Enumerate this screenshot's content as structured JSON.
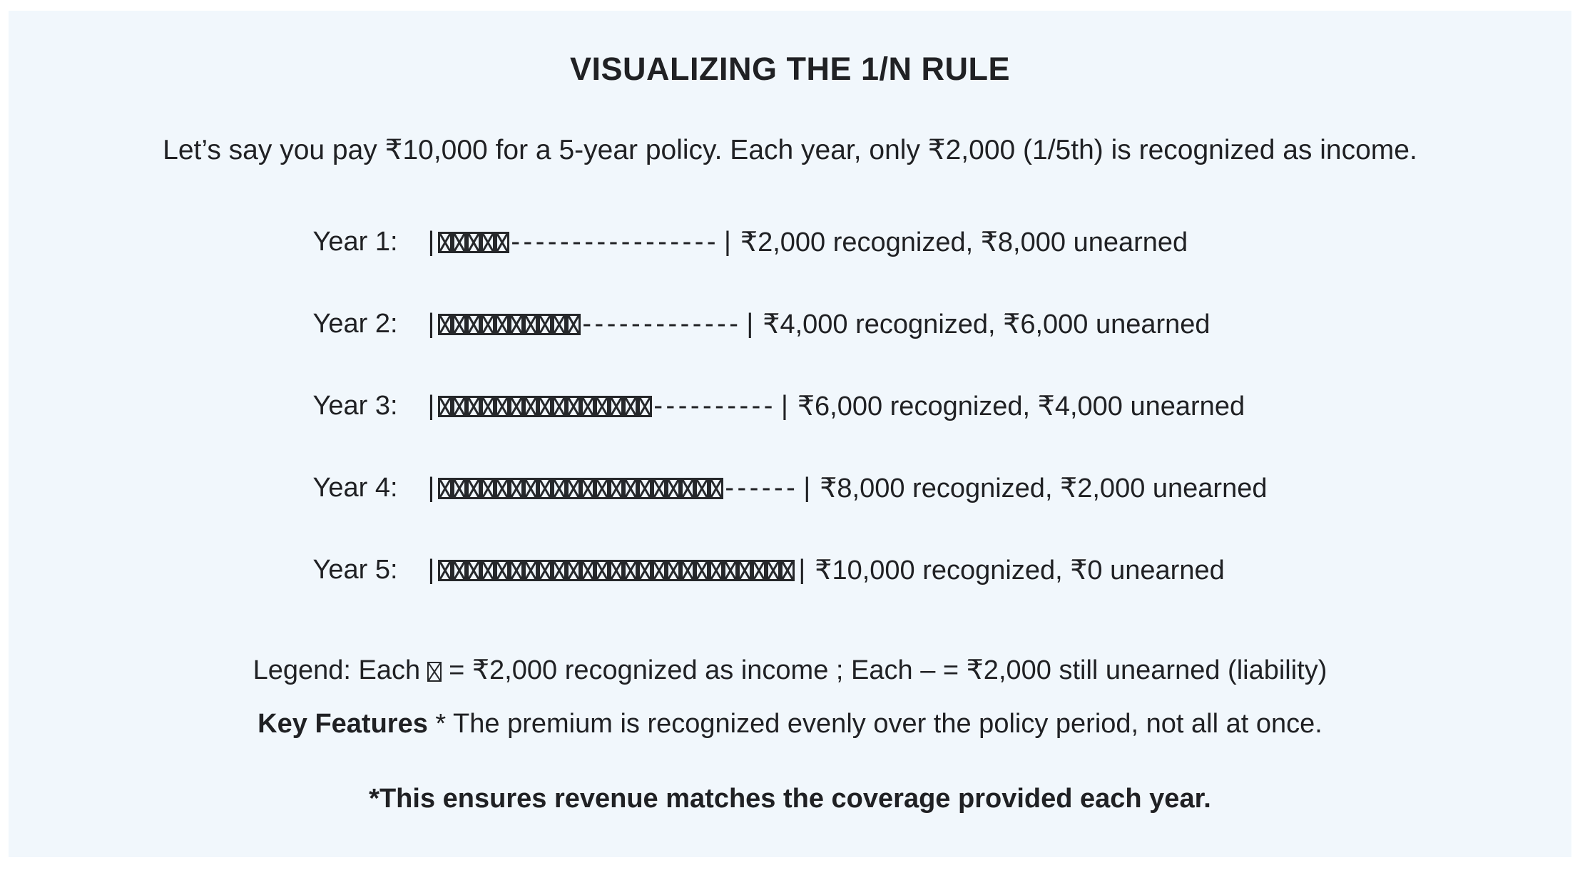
{
  "colors": {
    "page_bg": "#ffffff",
    "panel_bg": "#f1f7fc",
    "text": "#202124",
    "glyph_stroke": "#26282b"
  },
  "title": "VISUALIZING THE 1/N RULE",
  "intro": "Let’s say you pay ₹10,000 for a 5-year policy. Each year, only ₹2,000 (1/5th) is recognized as income.",
  "bar_glyphs": {
    "open_pipe": "|",
    "close_pipe": "|",
    "dash": "-",
    "block": "missing-glyph-box"
  },
  "rows": [
    {
      "label": "Year 1:",
      "blocks": 5,
      "dashes": 17,
      "values": "₹2,000 recognized, ₹8,000 unearned"
    },
    {
      "label": "Year 2:",
      "blocks": 10,
      "dashes": 13,
      "values": "₹4,000 recognized, ₹6,000 unearned"
    },
    {
      "label": "Year 3:",
      "blocks": 15,
      "dashes": 10,
      "values": "₹6,000 recognized, ₹4,000 unearned"
    },
    {
      "label": "Year 4:",
      "blocks": 20,
      "dashes": 6,
      "values": "₹8,000 recognized, ₹2,000 unearned"
    },
    {
      "label": "Year 5:",
      "blocks": 25,
      "dashes": 0,
      "values": "₹10,000 recognized, ₹0 unearned"
    }
  ],
  "legend": {
    "prefix": "Legend: Each",
    "suffix": "= ₹2,000 recognized as income ; Each – = ₹2,000 still unearned (liability)"
  },
  "key_features": {
    "bold": "Key Features",
    "rest": " * The premium is recognized evenly over the policy period, not all at once."
  },
  "footnote": "*This ensures revenue matches the coverage provided each year.",
  "chart_data": {
    "type": "bar",
    "orientation": "horizontal",
    "title": "VISUALIZING THE 1/N RULE",
    "categories": [
      "Year 1",
      "Year 2",
      "Year 3",
      "Year 4",
      "Year 5"
    ],
    "series": [
      {
        "name": "recognized (₹)",
        "values": [
          2000,
          4000,
          6000,
          8000,
          10000
        ]
      },
      {
        "name": "unearned (₹)",
        "values": [
          8000,
          6000,
          4000,
          2000,
          0
        ]
      }
    ],
    "unit": "₹",
    "total_premium": 10000,
    "per_year_recognition": 2000,
    "policy_years": 5,
    "block_glyph_value": 2000,
    "dash_glyph_value": 2000,
    "blocks_per_year": [
      5,
      10,
      15,
      20,
      25
    ],
    "dashes_per_year": [
      17,
      13,
      10,
      6,
      0
    ],
    "legend_position": "below",
    "grid": false
  }
}
